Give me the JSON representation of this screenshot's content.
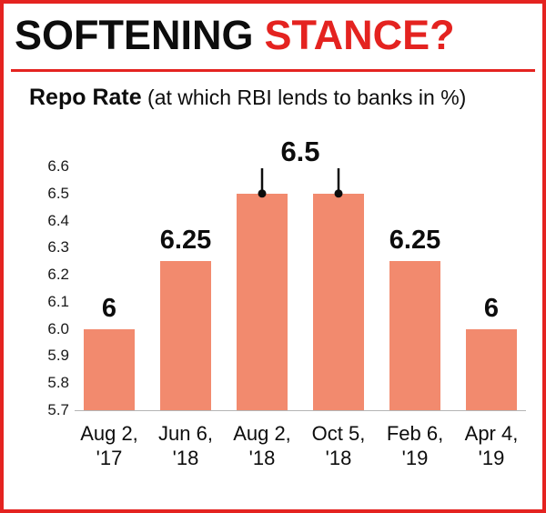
{
  "header": {
    "title_black": "SOFTENING",
    "title_red": "STANCE?"
  },
  "subtitle": {
    "bold": "Repo Rate",
    "rest": " (at which RBI lends to banks in %)"
  },
  "colors": {
    "accent_red": "#e42320",
    "bar_fill": "#f28a6e",
    "text": "#0d0d0d"
  },
  "chart_data": {
    "type": "bar",
    "title": "Repo Rate (at which RBI lends to banks in %)",
    "categories": [
      {
        "line1": "Aug 2,",
        "line2": "'17"
      },
      {
        "line1": "Jun 6,",
        "line2": "'18"
      },
      {
        "line1": "Aug 2,",
        "line2": "'18"
      },
      {
        "line1": "Oct 5,",
        "line2": "'18"
      },
      {
        "line1": "Feb 6,",
        "line2": "'19"
      },
      {
        "line1": "Apr 4,",
        "line2": "'19"
      }
    ],
    "values": [
      6,
      6.25,
      6.5,
      6.5,
      6.25,
      6
    ],
    "bar_value_labels": [
      "6",
      "6.25",
      null,
      null,
      "6.25",
      "6"
    ],
    "group_annotation": {
      "label": "6.5",
      "bar_indexes": [
        2,
        3
      ]
    },
    "ylim": [
      5.7,
      6.6
    ],
    "ytick_labels": [
      "6.6",
      "6.5",
      "6.4",
      "6.3",
      "6.2",
      "6.1",
      "6.0",
      "5.9",
      "5.8",
      "5.7"
    ],
    "grid": false,
    "legend": null,
    "bar_color": "#f28a6e",
    "xlabel": "",
    "ylabel": ""
  }
}
